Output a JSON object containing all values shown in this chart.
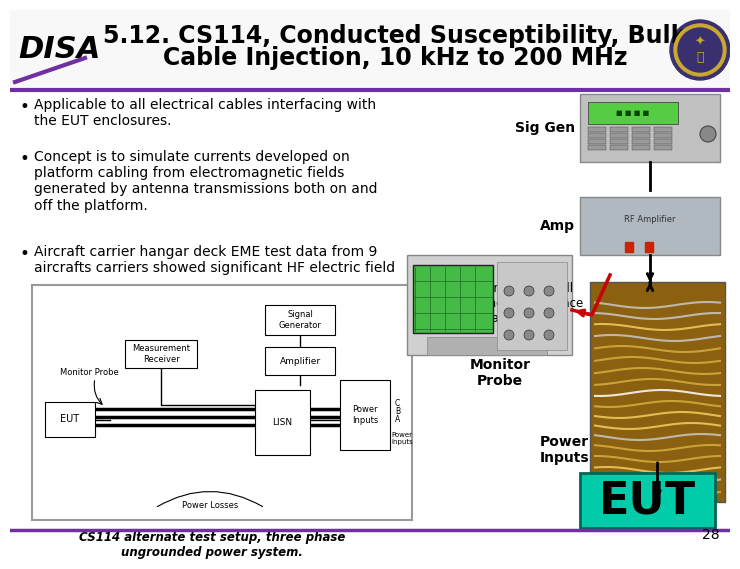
{
  "title_line1": "5.12. CS114, Conducted Susceptibility, Bulk",
  "title_line2": "Cable Injection, 10 kHz to 200 MHz",
  "title_fontsize": 17,
  "title_color": "#000000",
  "body_bg": "#ffffff",
  "header_border_color": "#7030a0",
  "bullet1": "Applicable to all electrical cables interfacing with\nthe EUT enclosures.",
  "bullet2": "Concept is to simulate currents developed on\nplatform cabling from electromagnetic fields\ngenerated by antenna transmissions both on and\noff the platform.",
  "bullet3": "Aircraft carrier hangar deck EME test data from 9\naircrafts carriers showed significant HF electric field",
  "bullet_fontsize": 10,
  "sig_gen_label": "Sig Gen",
  "amp_label": "Amp",
  "levels_text": "Levels are induced on all\nwires at connector interface\nsimultaneously",
  "monitor_probe_label": "Monitor\nProbe",
  "power_inputs_label": "Power\nInputs",
  "eut_label": "EUT",
  "eut_bg": "#00ccaa",
  "caption_text": "CS114 alternate test setup, three phase\nungrounded power system.",
  "page_number": "28",
  "label_fontsize": 9,
  "eut_fontsize": 32
}
